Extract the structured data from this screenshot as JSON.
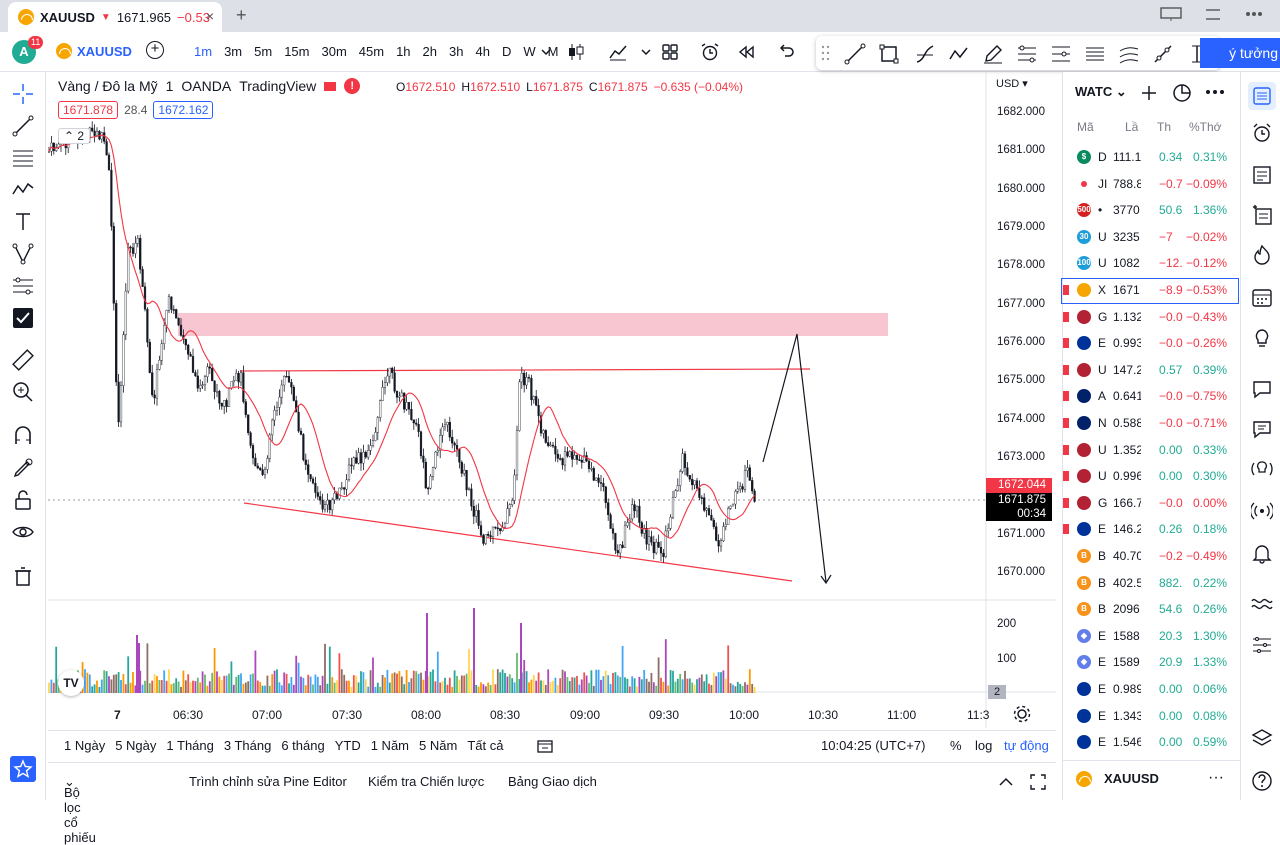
{
  "tab": {
    "symbol": "XAUUSD",
    "arrow": "▼",
    "price": "1671.965",
    "change": "−0.53",
    "close": "×",
    "new": "+"
  },
  "topbar": {
    "avatar": "A",
    "badge": "11",
    "symbol": "XAUUSD",
    "add": "+",
    "intervals": [
      "1m",
      "3m",
      "5m",
      "15m",
      "30m",
      "45m",
      "1h",
      "2h",
      "3h",
      "4h",
      "D",
      "W",
      "M"
    ],
    "active_interval": "1m",
    "idea": "ý tưởng"
  },
  "legend": {
    "title": "Vàng / Đô la Mỹ",
    "interval": "1",
    "broker": "OANDA",
    "platform": "TradingView",
    "warn": "!",
    "o_lbl": "O",
    "o": "1672.510",
    "h_lbl": "H",
    "h": "1672.510",
    "l_lbl": "L",
    "l": "1671.875",
    "c_lbl": "C",
    "c": "1671.875",
    "chg": "−0.635 (−0.04%)",
    "bid": "1671.878",
    "spread": "28.4",
    "ask": "1672.162",
    "collapse": "2"
  },
  "axis": {
    "currency": "USD",
    "y_labels": [
      "1682.000",
      "1681.000",
      "1680.000",
      "1679.000",
      "1678.000",
      "1677.000",
      "1676.000",
      "1675.000",
      "1674.000",
      "1673.000",
      "1672.000",
      "1671.000",
      "1670.000"
    ],
    "price_red": "1672.044",
    "price_last": "1671.875",
    "countdown": "00:34",
    "vol_200": "200",
    "vol_100": "100",
    "vol_badge": "2",
    "x_labels": [
      "7",
      "06:30",
      "07:00",
      "07:30",
      "08:00",
      "08:30",
      "09:00",
      "09:30",
      "10:00",
      "10:30",
      "11:00",
      "11:3"
    ]
  },
  "ranges": {
    "items": [
      "1 Ngày",
      "5 Ngày",
      "1 Tháng",
      "3 Tháng",
      "6 tháng",
      "YTD",
      "1 Năm",
      "5 Năm",
      "Tất cả"
    ],
    "clock": "10:04:25 (UTC+7)",
    "pct": "%",
    "log": "log",
    "auto": "tự động"
  },
  "bottom": {
    "screener": "Bộ lọc cổ phiếu",
    "pine": "Trình chỉnh sửa Pine Editor",
    "tester": "Kiểm tra Chiến lược",
    "panel": "Bảng Giao dịch"
  },
  "watchlist": {
    "title": "WATC",
    "cols": {
      "sym": "Mã",
      "last": "Lầ",
      "chg": "Th",
      "pct": "%Thớ"
    },
    "rows": [
      {
        "icon": "$",
        "color": "#0a8a5f",
        "sym": "D",
        "last": "111.1",
        "chg": "0.34",
        "pct": "0.31%",
        "dir": "up",
        "flag": false
      },
      {
        "icon": "",
        "color": "#ffffff",
        "sym": "JI",
        "last": "788.8",
        "chg": "−0.7",
        "pct": "−0.09%",
        "dir": "dn",
        "flag": false
      },
      {
        "icon": "500",
        "color": "#d61f1f",
        "sym": "•",
        "last": "3770",
        "chg": "50.6",
        "pct": "1.36%",
        "dir": "up",
        "flag": false
      },
      {
        "icon": "30",
        "color": "#1e9ed8",
        "sym": "U",
        "last": "3235",
        "chg": "−7",
        "pct": "−0.02%",
        "dir": "dn",
        "flag": false
      },
      {
        "icon": "100",
        "color": "#1e9ed8",
        "sym": "U",
        "last": "1082",
        "chg": "−12.",
        "pct": "−0.12%",
        "dir": "dn",
        "flag": false
      },
      {
        "icon": "",
        "color": "#f7a600",
        "sym": "X",
        "last": "1671",
        "chg": "−8.9",
        "pct": "−0.53%",
        "dir": "dn",
        "flag": true
      },
      {
        "icon": "",
        "color": "#b22234",
        "sym": "G",
        "last": "1.132",
        "chg": "−0.0",
        "pct": "−0.43%",
        "dir": "dn",
        "flag": true
      },
      {
        "icon": "",
        "color": "#003399",
        "sym": "E",
        "last": "0.993",
        "chg": "−0.0",
        "pct": "−0.26%",
        "dir": "dn",
        "flag": true
      },
      {
        "icon": "",
        "color": "#b22234",
        "sym": "U",
        "last": "147.2",
        "chg": "0.57",
        "pct": "0.39%",
        "dir": "up",
        "flag": true
      },
      {
        "icon": "",
        "color": "#012169",
        "sym": "A",
        "last": "0.641",
        "chg": "−0.0",
        "pct": "−0.75%",
        "dir": "dn",
        "flag": true
      },
      {
        "icon": "",
        "color": "#012169",
        "sym": "N",
        "last": "0.588",
        "chg": "−0.0",
        "pct": "−0.71%",
        "dir": "dn",
        "flag": true
      },
      {
        "icon": "",
        "color": "#b22234",
        "sym": "U",
        "last": "1.352",
        "chg": "0.00",
        "pct": "0.33%",
        "dir": "up",
        "flag": true
      },
      {
        "icon": "",
        "color": "#b22234",
        "sym": "U",
        "last": "0.996",
        "chg": "0.00",
        "pct": "0.30%",
        "dir": "up",
        "flag": true
      },
      {
        "icon": "",
        "color": "#b22234",
        "sym": "G",
        "last": "166.7",
        "chg": "−0.0",
        "pct": "0.00%",
        "dir": "dn",
        "flag": true
      },
      {
        "icon": "",
        "color": "#003399",
        "sym": "E",
        "last": "146.2",
        "chg": "0.26",
        "pct": "0.18%",
        "dir": "up",
        "flag": true
      },
      {
        "icon": "B",
        "color": "#f7931a",
        "sym": "B",
        "last": "40.70",
        "chg": "−0.2",
        "pct": "−0.49%",
        "dir": "dn",
        "flag": false
      },
      {
        "icon": "B",
        "color": "#f7931a",
        "sym": "B",
        "last": "402.5",
        "chg": "882.",
        "pct": "0.22%",
        "dir": "up",
        "flag": false
      },
      {
        "icon": "B",
        "color": "#f7931a",
        "sym": "B",
        "last": "2096",
        "chg": "54.6",
        "pct": "0.26%",
        "dir": "up",
        "flag": false
      },
      {
        "icon": "◆",
        "color": "#627eea",
        "sym": "E",
        "last": "1588",
        "chg": "20.3",
        "pct": "1.30%",
        "dir": "up",
        "flag": false
      },
      {
        "icon": "◆",
        "color": "#627eea",
        "sym": "E",
        "last": "1589",
        "chg": "20.9",
        "pct": "1.33%",
        "dir": "up",
        "flag": false
      },
      {
        "icon": "",
        "color": "#003399",
        "sym": "E",
        "last": "0.989",
        "chg": "0.00",
        "pct": "0.06%",
        "dir": "up",
        "flag": false
      },
      {
        "icon": "",
        "color": "#003399",
        "sym": "E",
        "last": "1.343",
        "chg": "0.00",
        "pct": "0.08%",
        "dir": "up",
        "flag": false
      },
      {
        "icon": "",
        "color": "#003399",
        "sym": "E",
        "last": "1.546",
        "chg": "0.00",
        "pct": "0.59%",
        "dir": "up",
        "flag": false
      }
    ],
    "footer_symbol": "XAUUSD",
    "more": "···"
  },
  "colors": {
    "accent": "#2962ff",
    "down": "#f23645",
    "up": "#22ab94",
    "zone": "#f7c6d0"
  }
}
